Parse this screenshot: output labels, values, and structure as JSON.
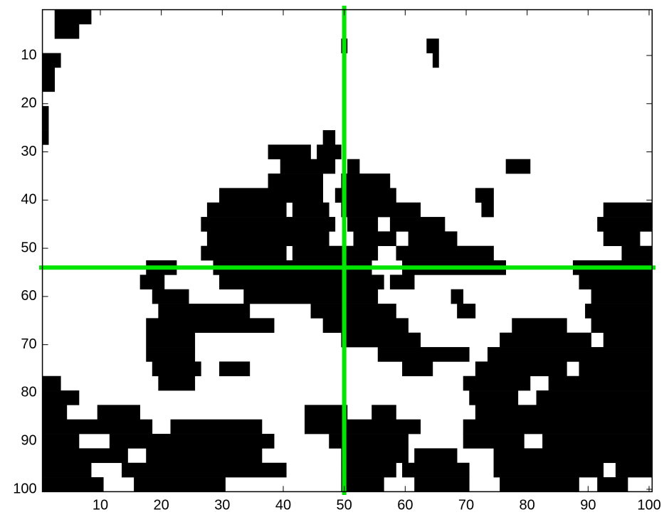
{
  "chart_data": {
    "type": "image",
    "xlim": [
      0.5,
      100.5
    ],
    "ylim": [
      0.5,
      100.5
    ],
    "y_reversed": true,
    "xticks": [
      10,
      20,
      30,
      40,
      50,
      60,
      70,
      80,
      90,
      100
    ],
    "yticks": [
      10,
      20,
      30,
      40,
      50,
      60,
      70,
      80,
      90,
      100
    ],
    "background": "#ffffff",
    "color": "#000000",
    "crosshair": {
      "x": 50,
      "y": 54,
      "color": "#00e600"
    },
    "bands": [
      {
        "y": [
          1,
          3
        ],
        "runs": [
          [
            3,
            8
          ]
        ]
      },
      {
        "y": [
          4,
          6
        ],
        "runs": [
          [
            3,
            6
          ]
        ]
      },
      {
        "y": [
          7,
          9
        ],
        "runs": [
          [
            50,
            50
          ],
          [
            64,
            65
          ]
        ]
      },
      {
        "y": [
          10,
          12
        ],
        "runs": [
          [
            1,
            3
          ],
          [
            65,
            65
          ]
        ]
      },
      {
        "y": [
          13,
          17
        ],
        "runs": [
          [
            1,
            2
          ]
        ]
      },
      {
        "y": [
          21,
          25
        ],
        "runs": [
          [
            1,
            1
          ]
        ]
      },
      {
        "y": [
          26,
          28
        ],
        "runs": [
          [
            1,
            1
          ],
          [
            47,
            48
          ]
        ]
      },
      {
        "y": [
          29,
          31
        ],
        "runs": [
          [
            38,
            44
          ],
          [
            46,
            49
          ]
        ]
      },
      {
        "y": [
          32,
          34
        ],
        "runs": [
          [
            40,
            48
          ],
          [
            51,
            52
          ],
          [
            77,
            80
          ]
        ]
      },
      {
        "y": [
          35,
          37
        ],
        "runs": [
          [
            38,
            46
          ],
          [
            50,
            57
          ]
        ]
      },
      {
        "y": [
          38,
          40
        ],
        "runs": [
          [
            30,
            46
          ],
          [
            49,
            58
          ],
          [
            72,
            74
          ]
        ]
      },
      {
        "y": [
          41,
          43
        ],
        "runs": [
          [
            28,
            40
          ],
          [
            42,
            47
          ],
          [
            50,
            62
          ],
          [
            73,
            74
          ],
          [
            93,
            100
          ]
        ]
      },
      {
        "y": [
          44,
          46
        ],
        "runs": [
          [
            27,
            48
          ],
          [
            51,
            55
          ],
          [
            58,
            66
          ],
          [
            92,
            100
          ]
        ]
      },
      {
        "y": [
          47,
          49
        ],
        "runs": [
          [
            28,
            47
          ],
          [
            52,
            58
          ],
          [
            61,
            68
          ],
          [
            93,
            98
          ]
        ]
      },
      {
        "y": [
          50,
          52
        ],
        "runs": [
          [
            27,
            40
          ],
          [
            42,
            55
          ],
          [
            59,
            74
          ],
          [
            96,
            100
          ]
        ]
      },
      {
        "y": [
          53,
          55
        ],
        "runs": [
          [
            18,
            22
          ],
          [
            29,
            54
          ],
          [
            60,
            76
          ],
          [
            88,
            100
          ]
        ]
      },
      {
        "y": [
          56,
          58
        ],
        "runs": [
          [
            17,
            20
          ],
          [
            30,
            56
          ],
          [
            58,
            61
          ],
          [
            89,
            100
          ]
        ]
      },
      {
        "y": [
          59,
          61
        ],
        "runs": [
          [
            19,
            24
          ],
          [
            34,
            55
          ],
          [
            68,
            69
          ],
          [
            91,
            100
          ]
        ]
      },
      {
        "y": [
          62,
          64
        ],
        "runs": [
          [
            20,
            34
          ],
          [
            45,
            58
          ],
          [
            69,
            71
          ],
          [
            90,
            100
          ]
        ]
      },
      {
        "y": [
          65,
          67
        ],
        "runs": [
          [
            18,
            38
          ],
          [
            47,
            60
          ],
          [
            78,
            86
          ],
          [
            91,
            100
          ]
        ]
      },
      {
        "y": [
          68,
          70
        ],
        "runs": [
          [
            18,
            25
          ],
          [
            50,
            62
          ],
          [
            76,
            90
          ],
          [
            93,
            100
          ]
        ]
      },
      {
        "y": [
          71,
          73
        ],
        "runs": [
          [
            18,
            25
          ],
          [
            56,
            70
          ],
          [
            74,
            100
          ]
        ]
      },
      {
        "y": [
          74,
          76
        ],
        "runs": [
          [
            19,
            26
          ],
          [
            30,
            34
          ],
          [
            60,
            64
          ],
          [
            72,
            86
          ],
          [
            89,
            100
          ]
        ]
      },
      {
        "y": [
          77,
          79
        ],
        "runs": [
          [
            1,
            3
          ],
          [
            20,
            25
          ],
          [
            70,
            80
          ],
          [
            84,
            100
          ]
        ]
      },
      {
        "y": [
          80,
          82
        ],
        "runs": [
          [
            1,
            6
          ],
          [
            71,
            78
          ],
          [
            82,
            100
          ]
        ]
      },
      {
        "y": [
          83,
          85
        ],
        "runs": [
          [
            1,
            4
          ],
          [
            10,
            16
          ],
          [
            44,
            50
          ],
          [
            55,
            58
          ],
          [
            72,
            100
          ]
        ]
      },
      {
        "y": [
          86,
          88
        ],
        "runs": [
          [
            1,
            18
          ],
          [
            22,
            36
          ],
          [
            44,
            62
          ],
          [
            70,
            100
          ]
        ]
      },
      {
        "y": [
          89,
          91
        ],
        "runs": [
          [
            1,
            6
          ],
          [
            12,
            38
          ],
          [
            48,
            60
          ],
          [
            70,
            79
          ],
          [
            83,
            100
          ]
        ]
      },
      {
        "y": [
          92,
          94
        ],
        "runs": [
          [
            1,
            14
          ],
          [
            18,
            36
          ],
          [
            50,
            60
          ],
          [
            62,
            68
          ],
          [
            75,
            100
          ]
        ]
      },
      {
        "y": [
          95,
          97
        ],
        "runs": [
          [
            1,
            8
          ],
          [
            14,
            40
          ],
          [
            50,
            58
          ],
          [
            60,
            70
          ],
          [
            75,
            92
          ],
          [
            95,
            100
          ]
        ]
      },
      {
        "y": [
          98,
          100
        ],
        "runs": [
          [
            1,
            10
          ],
          [
            16,
            30
          ],
          [
            50,
            56
          ],
          [
            62,
            70
          ],
          [
            76,
            88
          ],
          [
            92,
            96
          ]
        ]
      }
    ]
  }
}
